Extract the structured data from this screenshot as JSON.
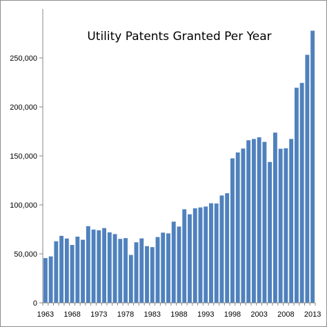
{
  "chart_data": {
    "type": "bar",
    "title": "Utility Patents Granted Per Year",
    "xlabel": "",
    "ylabel": "",
    "x_tick_labels": [
      "1963",
      "1968",
      "1973",
      "1978",
      "1983",
      "1988",
      "1993",
      "1998",
      "2003",
      "2008",
      "2013"
    ],
    "y_tick_labels": [
      "0",
      "50,000",
      "100,000",
      "150,000",
      "200,000",
      "250,000"
    ],
    "y_ticks": [
      0,
      50000,
      100000,
      150000,
      200000,
      250000
    ],
    "ylim": [
      0,
      300000
    ],
    "grid": false,
    "legend": "none",
    "bar_color": "#4f81bd",
    "categories": [
      1963,
      1964,
      1965,
      1966,
      1967,
      1968,
      1969,
      1970,
      1971,
      1972,
      1973,
      1974,
      1975,
      1976,
      1977,
      1978,
      1979,
      1980,
      1981,
      1982,
      1983,
      1984,
      1985,
      1986,
      1987,
      1988,
      1989,
      1990,
      1991,
      1992,
      1993,
      1994,
      1995,
      1996,
      1997,
      1998,
      1999,
      2000,
      2001,
      2002,
      2003,
      2004,
      2005,
      2006,
      2007,
      2008,
      2009,
      2010,
      2011,
      2012,
      2013
    ],
    "values": [
      45700,
      47400,
      62900,
      68400,
      65700,
      59100,
      67600,
      64400,
      78300,
      74800,
      74100,
      76300,
      72000,
      70200,
      65300,
      66100,
      48900,
      61800,
      65800,
      57900,
      56900,
      67200,
      71700,
      70900,
      82900,
      77900,
      95500,
      90400,
      96500,
      97400,
      98300,
      101700,
      101400,
      109600,
      111900,
      147500,
      153500,
      157500,
      166000,
      167300,
      169000,
      164300,
      143800,
      173800,
      157300,
      157800,
      167300,
      219600,
      224500,
      253200,
      277800
    ]
  }
}
